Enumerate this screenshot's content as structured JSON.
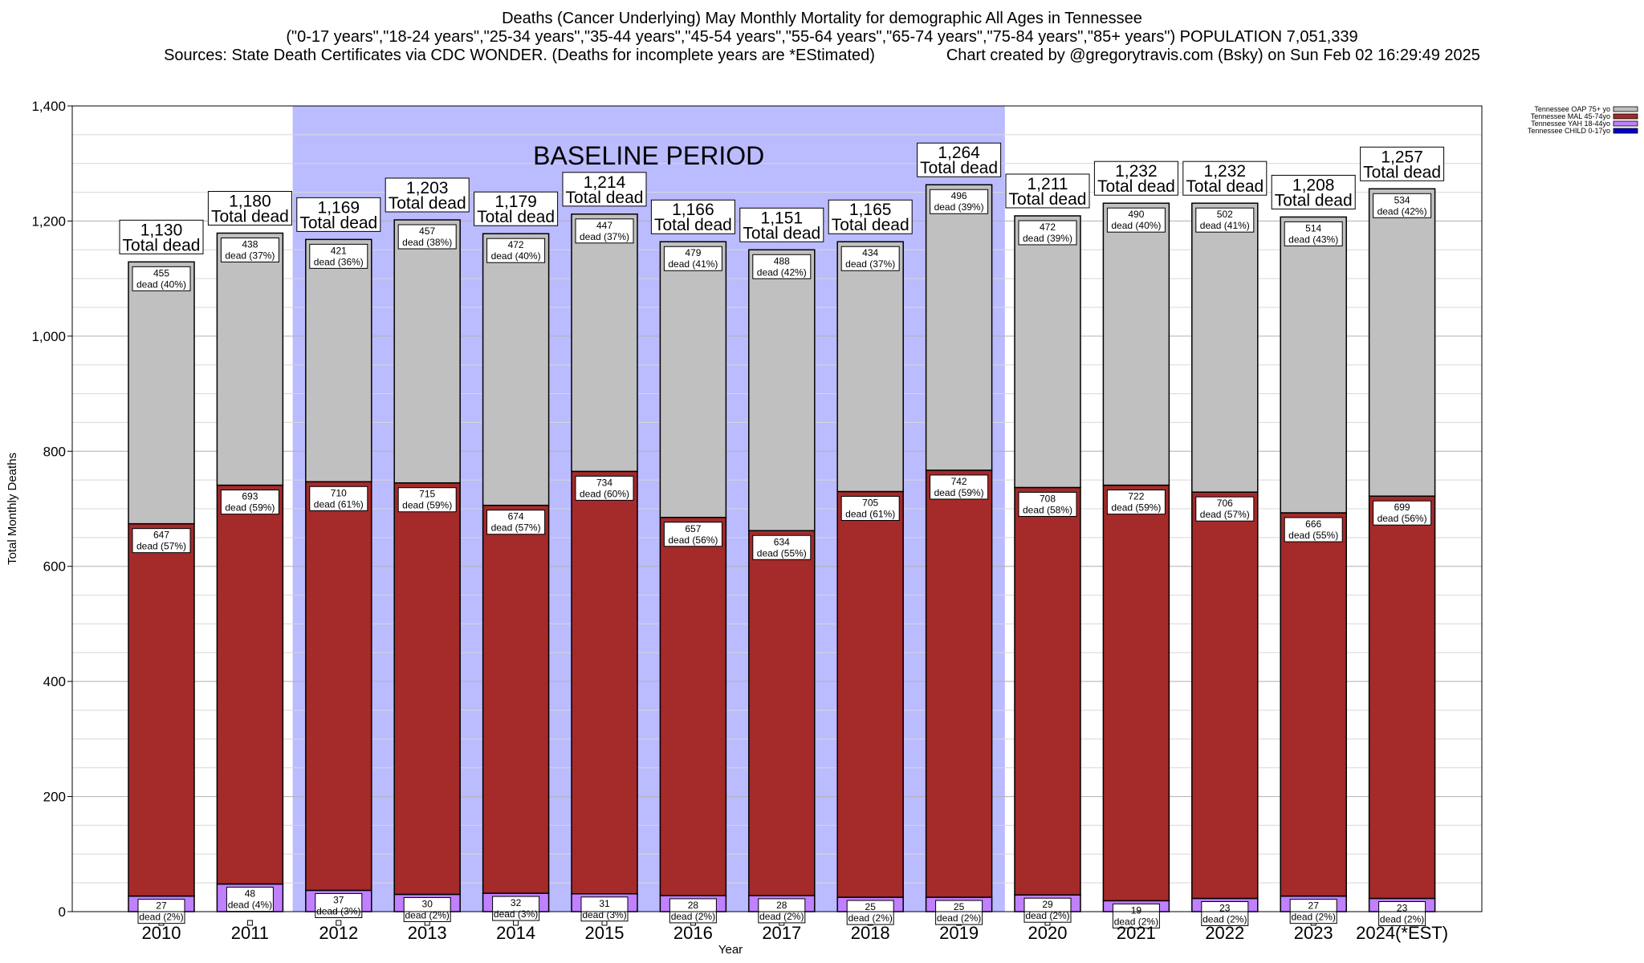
{
  "title": {
    "line1": "Deaths (Cancer Underlying) May Monthly Mortality for demographic All Ages in Tennessee",
    "line2": "(\"0-17 years\",\"18-24 years\",\"25-34 years\",\"35-44 years\",\"45-54 years\",\"55-64 years\",\"65-74 years\",\"75-84 years\",\"85+ years\") POPULATION 7,051,339",
    "line3": "Sources: State Death Certificates via CDC WONDER. (Deaths for incomplete years are *EStimated)                Chart created by @gregorytravis.com (Bsky) on Sun Feb 02 16:29:49 2025"
  },
  "chart_data": {
    "type": "bar",
    "stacked": true,
    "categories": [
      "2010",
      "2011",
      "2012",
      "2013",
      "2014",
      "2015",
      "2016",
      "2017",
      "2018",
      "2019",
      "2020",
      "2021",
      "2022",
      "2023",
      "2024(*EST)"
    ],
    "series": [
      {
        "name": "Tennessee CHILD 0-17yo",
        "color": "#0000cc",
        "values": [
          0,
          0,
          0,
          0,
          0,
          0,
          0,
          0,
          0,
          0,
          0,
          0,
          0,
          0,
          0
        ],
        "labels": [
          "",
          "",
          "",
          "",
          "",
          "",
          "",
          "",
          "",
          "",
          "",
          "",
          "",
          "",
          ""
        ]
      },
      {
        "name": "Tennessee YAH 18-44yo",
        "color": "#c080ff",
        "values": [
          27,
          48,
          37,
          30,
          32,
          31,
          28,
          28,
          25,
          25,
          29,
          19,
          23,
          27,
          23
        ],
        "labels": [
          "dead (2%)",
          "dead (4%)",
          "dead (3%)",
          "dead (2%)",
          "dead (3%)",
          "dead (3%)",
          "dead (2%)",
          "dead (2%)",
          "dead (2%)",
          "dead (2%)",
          "dead (2%)",
          "dead (2%)",
          "dead (2%)",
          "dead (2%)",
          "dead (2%)"
        ]
      },
      {
        "name": "Tennessee MAL 45-74yo",
        "color": "#a52a2a",
        "values": [
          647,
          693,
          710,
          715,
          674,
          734,
          657,
          634,
          705,
          742,
          708,
          722,
          706,
          666,
          699
        ],
        "labels": [
          "dead (57%)",
          "dead (59%)",
          "dead (61%)",
          "dead (59%)",
          "dead (57%)",
          "dead (60%)",
          "dead (56%)",
          "dead (55%)",
          "dead (61%)",
          "dead (59%)",
          "dead (58%)",
          "dead (59%)",
          "dead (57%)",
          "dead (55%)",
          "dead (56%)"
        ]
      },
      {
        "name": "Tennessee OAP 75+ yo",
        "color": "#c0c0c0",
        "values": [
          455,
          438,
          421,
          457,
          472,
          447,
          479,
          488,
          434,
          496,
          472,
          490,
          502,
          514,
          534
        ],
        "labels": [
          "dead (40%)",
          "dead (37%)",
          "dead (36%)",
          "dead (38%)",
          "dead (40%)",
          "dead (37%)",
          "dead (41%)",
          "dead (42%)",
          "dead (37%)",
          "dead (39%)",
          "dead (39%)",
          "dead (40%)",
          "dead (41%)",
          "dead (43%)",
          "dead (42%)"
        ]
      }
    ],
    "totals": [
      "1,130",
      "1,180",
      "1,169",
      "1,203",
      "1,179",
      "1,214",
      "1,166",
      "1,151",
      "1,165",
      "1,264",
      "1,211",
      "1,232",
      "1,232",
      "1,208",
      "1,257"
    ],
    "total_suffix": "Total dead",
    "xlabel": "Year",
    "ylabel": "Total Monthly Deaths",
    "ylim": [
      0,
      1400
    ],
    "yticks": [
      0,
      200,
      400,
      600,
      800,
      1000,
      1200,
      1400
    ],
    "ytick_labels": [
      "0",
      "200",
      "400",
      "600",
      "800",
      "1,000",
      "1,200",
      "1,400"
    ],
    "baseline": {
      "label": "BASELINE PERIOD",
      "from": "2012",
      "to": "2019",
      "color": "#bbbbff"
    },
    "legend_position": "top-right",
    "grid": true
  }
}
